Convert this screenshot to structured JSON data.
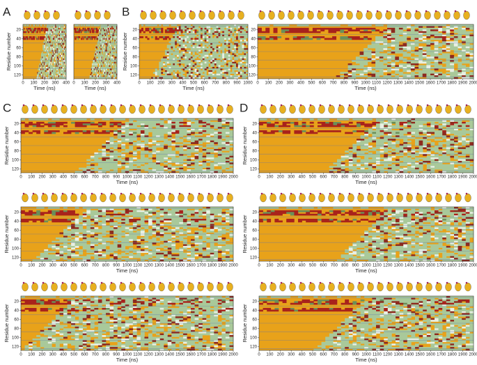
{
  "panels": [
    {
      "label": "A",
      "plots": [
        {
          "xlim": [
            0,
            400
          ],
          "xticks": [
            0,
            100,
            200,
            300,
            400
          ],
          "ylim": [
            8,
            128
          ],
          "yticks": [
            20,
            40,
            60,
            80,
            100,
            120
          ],
          "xlabel": "Time (ns)",
          "ylabel": "Residue number"
        },
        {
          "xlim": [
            0,
            400
          ],
          "xticks": [
            0,
            100,
            200,
            300,
            400
          ],
          "xlabel": "Time (ns)"
        }
      ]
    },
    {
      "label": "B",
      "plots": [
        {
          "xlim": [
            0,
            1000
          ],
          "xticks": [
            0,
            100,
            200,
            300,
            400,
            500,
            600,
            700,
            800,
            900,
            1000
          ],
          "ylim": [
            8,
            128
          ],
          "yticks": [
            20,
            40,
            60,
            80,
            100,
            120
          ],
          "xlabel": "Time (ns)",
          "ylabel": "Residue number"
        },
        {
          "xlim": [
            0,
            2000
          ],
          "xticks": [
            0,
            100,
            200,
            300,
            400,
            500,
            600,
            700,
            800,
            900,
            1000,
            1100,
            1200,
            1300,
            1400,
            1500,
            1600,
            1700,
            1800,
            1900,
            2000
          ],
          "ylim": [
            8,
            128
          ],
          "yticks": [
            20,
            40,
            60,
            80,
            100,
            120
          ],
          "xlabel": "Time (ns)"
        }
      ]
    },
    {
      "label": "C",
      "plots": [
        {
          "xlim": [
            0,
            2000
          ],
          "xticks": [
            0,
            100,
            200,
            300,
            400,
            500,
            600,
            700,
            800,
            900,
            1000,
            1100,
            1200,
            1300,
            1400,
            1500,
            1600,
            1700,
            1800,
            1900,
            2000
          ],
          "ylim": [
            8,
            128
          ],
          "yticks": [
            20,
            40,
            60,
            80,
            100,
            120
          ],
          "xlabel": "Time (ns)",
          "ylabel": "Residue number"
        },
        {
          "xlim": [
            0,
            2000
          ],
          "xticks": [
            0,
            100,
            200,
            300,
            400,
            500,
            600,
            700,
            800,
            900,
            1000,
            1100,
            1200,
            1300,
            1400,
            1500,
            1600,
            1700,
            1800,
            1900,
            2000
          ],
          "ylim": [
            8,
            128
          ],
          "yticks": [
            20,
            40,
            60,
            80,
            100,
            120
          ],
          "xlabel": "Time (ns)",
          "ylabel": "Residue number"
        },
        {
          "xlim": [
            0,
            2000
          ],
          "xticks": [
            0,
            100,
            200,
            300,
            400,
            500,
            600,
            700,
            800,
            900,
            1000,
            1100,
            1200,
            1300,
            1400,
            1500,
            1600,
            1700,
            1800,
            1900,
            2000
          ],
          "ylim": [
            8,
            128
          ],
          "yticks": [
            20,
            40,
            60,
            80,
            100,
            120
          ],
          "xlabel": "Time (ns)",
          "ylabel": "Residue number"
        }
      ]
    },
    {
      "label": "D",
      "plots": [
        {
          "xlim": [
            0,
            2000
          ],
          "xticks": [
            0,
            100,
            200,
            300,
            400,
            500,
            600,
            700,
            800,
            900,
            1000,
            1100,
            1200,
            1300,
            1400,
            1500,
            1600,
            1700,
            1800,
            1900,
            2000
          ],
          "ylim": [
            8,
            128
          ],
          "yticks": [
            20,
            40,
            60,
            80,
            100,
            120
          ],
          "xlabel": "Time (ns)",
          "ylabel": "Residue number"
        },
        {
          "xlim": [
            0,
            2000
          ],
          "xticks": [
            0,
            100,
            200,
            300,
            400,
            500,
            600,
            700,
            800,
            900,
            1000,
            1100,
            1200,
            1300,
            1400,
            1500,
            1600,
            1700,
            1800,
            1900,
            2000
          ],
          "ylim": [
            8,
            128
          ],
          "yticks": [
            20,
            40,
            60,
            80,
            100,
            120
          ],
          "xlabel": "Time (ns)",
          "ylabel": "Residue number"
        },
        {
          "xlim": [
            0,
            2000
          ],
          "xticks": [
            0,
            100,
            200,
            300,
            400,
            500,
            600,
            700,
            800,
            900,
            1000,
            1100,
            1200,
            1300,
            1400,
            1500,
            1600,
            1700,
            1800,
            1900,
            2000
          ],
          "ylim": [
            8,
            128
          ],
          "yticks": [
            20,
            40,
            60,
            80,
            100,
            120
          ],
          "xlabel": "Time (ns)",
          "ylabel": "Residue number"
        }
      ]
    }
  ]
}
